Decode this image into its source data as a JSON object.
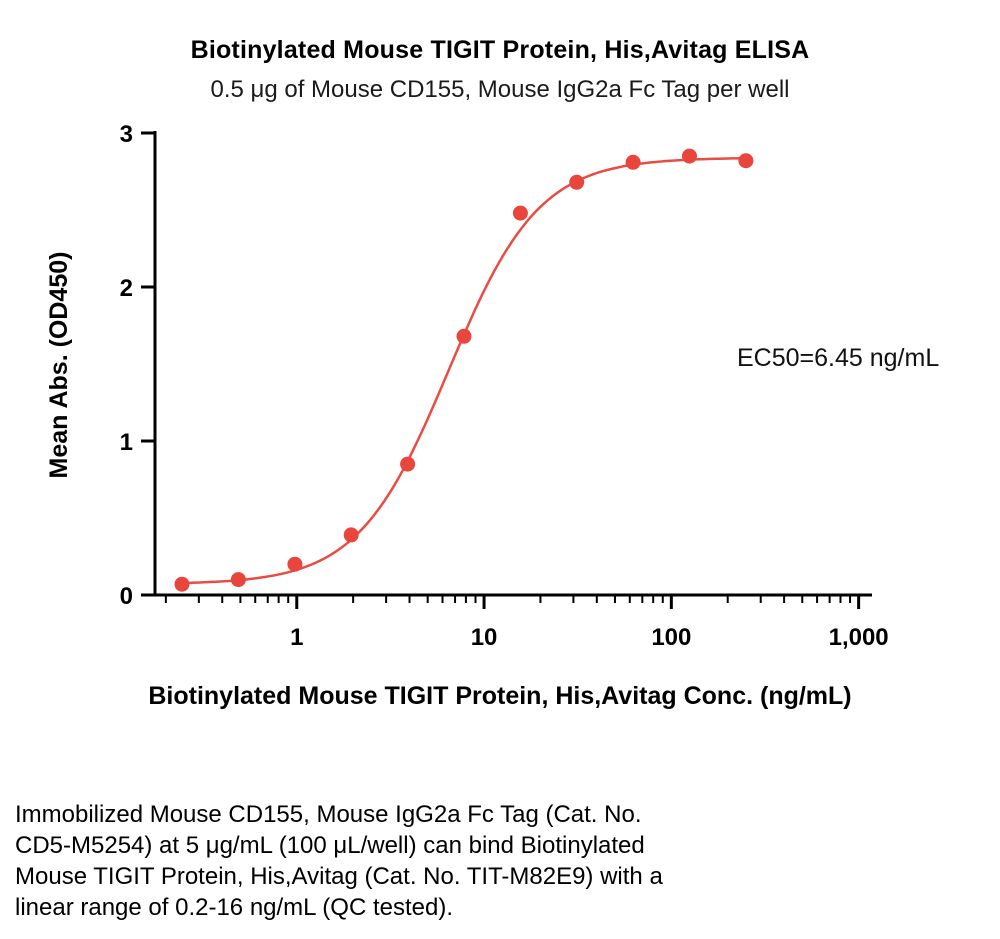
{
  "description": {
    "lines": [
      "Immobilized Mouse CD155, Mouse IgG2a Fc Tag (Cat. No.",
      "CD5-M5254) at 5 μg/mL (100 μL/well) can bind Biotinylated",
      "Mouse TIGIT Protein, His,Avitag (Cat. No. TIT-M82E9) with a",
      "linear range of 0.2-16 ng/mL (QC tested)."
    ]
  },
  "chart_data": {
    "type": "scatter",
    "title": "Biotinylated Mouse TIGIT Protein, His,Avitag ELISA",
    "subtitle": "0.5 μg of Mouse CD155, Mouse IgG2a Fc Tag per well",
    "xlabel": "Biotinylated Mouse TIGIT Protein, His,Avitag Conc. (ng/mL)",
    "ylabel": "Mean Abs. (OD450)",
    "ec50_label": "EC50=6.45 ng/mL",
    "x_scale": "log",
    "xlim": [
      0.175,
      1150
    ],
    "ylim": [
      0,
      3
    ],
    "x": [
      0.244,
      0.488,
      0.977,
      1.953,
      3.906,
      7.813,
      15.625,
      31.25,
      62.5,
      125,
      250
    ],
    "y": [
      0.07,
      0.1,
      0.2,
      0.39,
      0.85,
      1.68,
      2.48,
      2.68,
      2.81,
      2.85,
      2.82
    ],
    "x_ticks": [
      {
        "value": 1,
        "label": "1"
      },
      {
        "value": 10,
        "label": "10"
      },
      {
        "value": 100,
        "label": "100"
      },
      {
        "value": 1000,
        "label": "1,000"
      }
    ],
    "y_ticks": [
      {
        "value": 0,
        "label": "0"
      },
      {
        "value": 1,
        "label": "1"
      },
      {
        "value": 2,
        "label": "2"
      },
      {
        "value": 3,
        "label": "3"
      }
    ],
    "curve_fit": {
      "model": "4PL",
      "bottom": 0.07,
      "top": 2.84,
      "ec50": 6.45,
      "hill": 1.8
    },
    "legend": "none",
    "grid": "off",
    "colors": {
      "line": "#EA4C44",
      "point": "#E8453C",
      "axis": "#000000"
    }
  }
}
